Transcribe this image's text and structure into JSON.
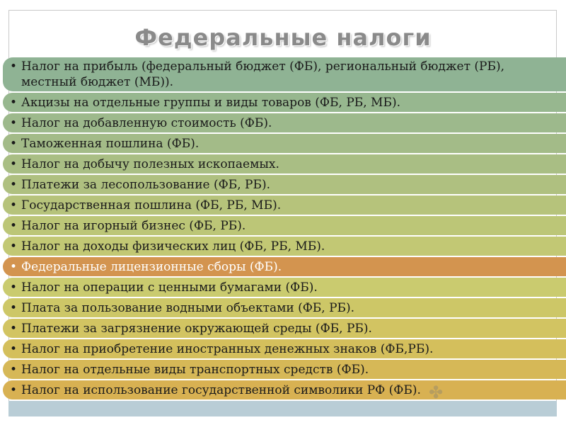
{
  "title": "Федеральные налоги",
  "items": [
    {
      "text": "Налог на прибыль (федеральный бюджет (ФБ), региональный бюджет (РБ), местный бюджет (МБ)).",
      "color": "#8fb394"
    },
    {
      "text": "Акцизы на отдельные группы и виды товаров (ФБ, РБ, МБ).",
      "color": "#97b78f"
    },
    {
      "text": "Налог на добавленную стоимость (ФБ).",
      "color": "#9db98c"
    },
    {
      "text": "Таможенная пошлина (ФБ).",
      "color": "#a3bb88"
    },
    {
      "text": "Налог на добычу полезных ископаемых.",
      "color": "#a9be84"
    },
    {
      "text": "Платежи за лесопользование (ФБ, РБ).",
      "color": "#afc080"
    },
    {
      "text": "Государственная пошлина (ФБ, РБ, МБ).",
      "color": "#b6c37b"
    },
    {
      "text": "Налог на игорный бизнес (ФБ, РБ).",
      "color": "#bcc677"
    },
    {
      "text": "Налог на доходы физических лиц (ФБ, РБ, МБ).",
      "color": "#c2c874"
    },
    {
      "text": "Федеральные лицензионные сборы (ФБ).",
      "color": "#d3944f"
    },
    {
      "text": "Налог на операции с ценными бумагами (ФБ).",
      "color": "#cacb6f"
    },
    {
      "text": "Плата за пользование водными объектами (ФБ, РБ).",
      "color": "#cdc767"
    },
    {
      "text": "Платежи за загрязнение окружающей среды (ФБ, РБ).",
      "color": "#d2c462"
    },
    {
      "text": "Налог на приобретение иностранных денежных знаков (ФБ,РБ).",
      "color": "#d4bf5c"
    },
    {
      "text": "Налог на отдельные виды транспортных средств (ФБ).",
      "color": "#d6b857"
    },
    {
      "text": "Налог на использование государственной символики РФ (ФБ).",
      "color": "#d8b152"
    }
  ]
}
